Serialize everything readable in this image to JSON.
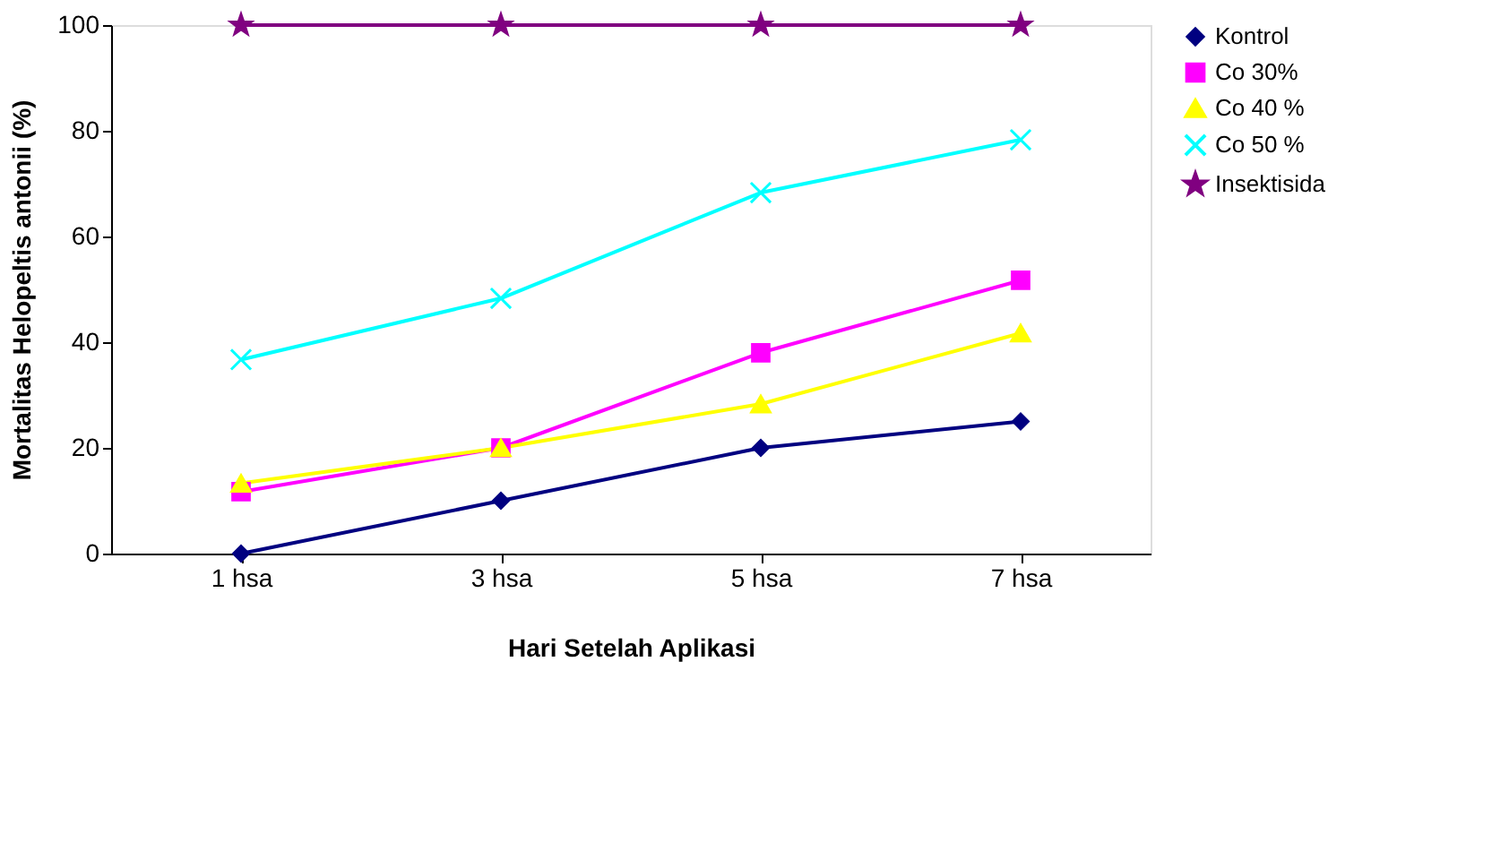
{
  "chart_data": {
    "type": "line",
    "xlabel": "Hari Setelah Aplikasi",
    "ylabel": "Mortalitas Helopeltis antonii (%)",
    "categories": [
      "1 hsa",
      "3 hsa",
      "5 hsa",
      "7 hsa"
    ],
    "series": [
      {
        "name": "Kontrol",
        "color": "#000080",
        "marker": "diamond",
        "values": [
          0,
          10,
          20,
          25
        ]
      },
      {
        "name": "Co 30%",
        "color": "#ff00ff",
        "marker": "square",
        "values": [
          11.7,
          20,
          38,
          51.7
        ]
      },
      {
        "name": "Co 40 %",
        "color": "#ffff00",
        "marker": "triangle",
        "values": [
          13.3,
          20,
          28.3,
          41.7
        ]
      },
      {
        "name": "Co 50 %",
        "color": "#00ffff",
        "marker": "cross",
        "values": [
          36.7,
          48.3,
          68.3,
          78.3
        ]
      },
      {
        "name": "Insektisida",
        "color": "#800080",
        "marker": "star",
        "values": [
          100,
          100,
          100,
          100
        ]
      }
    ],
    "ylim": [
      0,
      100
    ],
    "yticks": [
      0,
      20,
      40,
      60,
      80,
      100
    ],
    "grid": false,
    "legend": "right",
    "line_style": "solid"
  }
}
